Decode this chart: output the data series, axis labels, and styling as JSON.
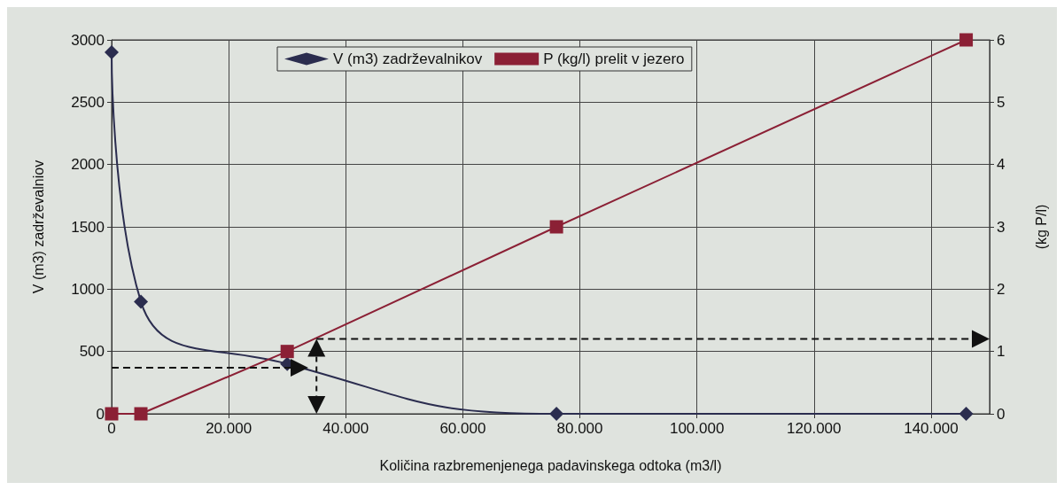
{
  "chart_data": {
    "type": "line",
    "xlabel": "Količina razbremenjenega padavinskega odtoka (m3/l)",
    "ylabel": "V (m3) zadrževalniov",
    "y2label": "(kg P/l)",
    "xlim": [
      0,
      150000
    ],
    "xticks": [
      0,
      {
        "value": 20000,
        "label": "20.000"
      },
      {
        "value": 40000,
        "label": "40.000"
      },
      {
        "value": 60000,
        "label": "60.000"
      },
      {
        "value": 80000,
        "label": "80.000"
      },
      {
        "value": 100000,
        "label": "100.000"
      },
      {
        "value": 120000,
        "label": "120.000"
      },
      {
        "value": 140000,
        "label": "140.000"
      }
    ],
    "ylim": [
      0,
      3000
    ],
    "yticks": [
      0,
      500,
      1000,
      1500,
      2000,
      2500,
      3000
    ],
    "y2lim": [
      0,
      6
    ],
    "y2ticks": [
      0,
      1,
      2,
      3,
      4,
      5,
      6
    ],
    "grid": true,
    "legend": "top",
    "series": [
      {
        "name": "V (m3) zadrževalnikov",
        "color": "#2b2d4f",
        "marker": "diamond",
        "x": [
          0,
          5000,
          30000,
          76000,
          146000
        ],
        "values": [
          2900,
          900,
          400,
          0,
          0
        ]
      },
      {
        "name": "P (kg/l) prelit v jezero",
        "color": "#8b2035",
        "marker": "square",
        "axis": "y2",
        "x": [
          0,
          5000,
          30000,
          76000,
          146000
        ],
        "values": [
          0,
          0,
          1,
          3,
          6
        ]
      }
    ]
  }
}
